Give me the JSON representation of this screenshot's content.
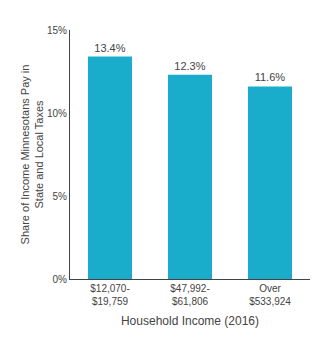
{
  "chart_data": {
    "type": "bar",
    "categories": [
      "$12,070-\n$19,759",
      "$47,992-\n$61,806",
      "Over\n$533,924"
    ],
    "values": [
      13.4,
      12.3,
      11.6
    ],
    "value_labels": [
      "13.4%",
      "12.3%",
      "11.6%"
    ],
    "data_labels": true,
    "color": "#1AADCB",
    "xlabel": "Household Income (2016)",
    "ylabel": "Share of Income Minnesotans Pay in\nState and Local Taxes",
    "ylim": [
      0,
      15
    ],
    "yticks": [
      {
        "value": 0,
        "label": "0%"
      },
      {
        "value": 5,
        "label": "5%"
      },
      {
        "value": 10,
        "label": "10%"
      },
      {
        "value": 15,
        "label": "15%"
      }
    ],
    "grid": false
  }
}
